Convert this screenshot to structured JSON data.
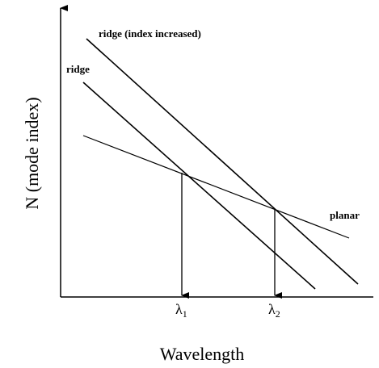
{
  "axes": {
    "x_label": "Wavelength",
    "y_label": "N (mode index)"
  },
  "curves": [
    {
      "label": "ridge (index increased)"
    },
    {
      "label": "ridge"
    },
    {
      "label": "planar"
    }
  ],
  "markers": [
    {
      "symbol": "λ",
      "subscript": "1"
    },
    {
      "symbol": "λ",
      "subscript": "2"
    }
  ]
}
